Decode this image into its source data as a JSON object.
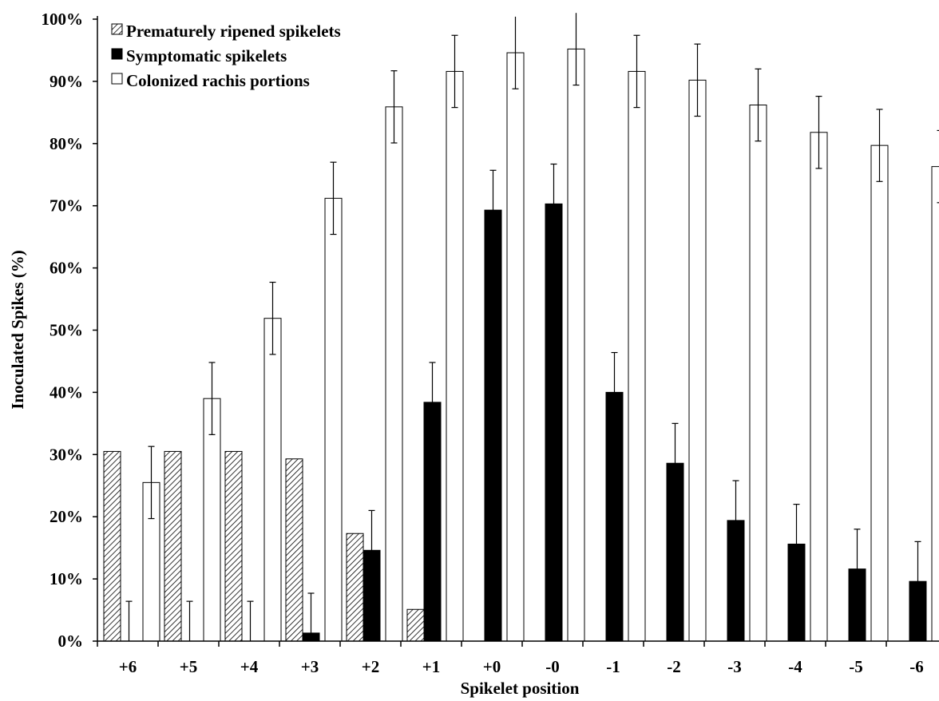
{
  "chart_data": {
    "type": "bar",
    "title": "",
    "xlabel": "Spikelet position",
    "ylabel": "Inoculated Spikes (%)",
    "ylim": [
      0,
      100
    ],
    "yticks": [
      "0%",
      "10%",
      "20%",
      "30%",
      "40%",
      "50%",
      "60%",
      "70%",
      "80%",
      "90%",
      "100%"
    ],
    "grid": false,
    "legend_position": "top-left",
    "categories": [
      "+6",
      "+5",
      "+4",
      "+3",
      "+2",
      "+1",
      "+0",
      "-0",
      "-1",
      "-2",
      "-3",
      "-4",
      "-5",
      "-6"
    ],
    "series": [
      {
        "name": "Prematurely ripened spikelets",
        "fill": "hatched",
        "values": [
          30.5,
          30.5,
          30.5,
          29.3,
          17.3,
          5.1,
          0,
          0,
          0,
          0,
          0,
          0,
          0,
          0
        ],
        "error": [
          0,
          0,
          0,
          0,
          0,
          0,
          0,
          0,
          0,
          0,
          0,
          0,
          0,
          0
        ]
      },
      {
        "name": "Symptomatic spikelets",
        "fill": "#000000",
        "values": [
          0,
          0,
          0,
          1.3,
          14.6,
          38.4,
          69.3,
          70.3,
          40.0,
          28.6,
          19.4,
          15.6,
          11.6,
          9.6
        ],
        "error": [
          6.4,
          6.4,
          6.4,
          6.4,
          6.4,
          6.4,
          6.4,
          6.4,
          6.4,
          6.4,
          6.4,
          6.4,
          6.4,
          6.4
        ]
      },
      {
        "name": "Colonized rachis portions",
        "fill": "#ffffff",
        "values": [
          25.5,
          39.0,
          51.9,
          71.2,
          85.9,
          91.6,
          94.6,
          95.2,
          91.6,
          90.2,
          86.2,
          81.8,
          79.7,
          76.3
        ],
        "error": [
          5.8,
          5.8,
          5.8,
          5.8,
          5.8,
          5.8,
          5.8,
          5.8,
          5.8,
          5.8,
          5.8,
          5.8,
          5.8,
          5.8
        ]
      }
    ]
  }
}
